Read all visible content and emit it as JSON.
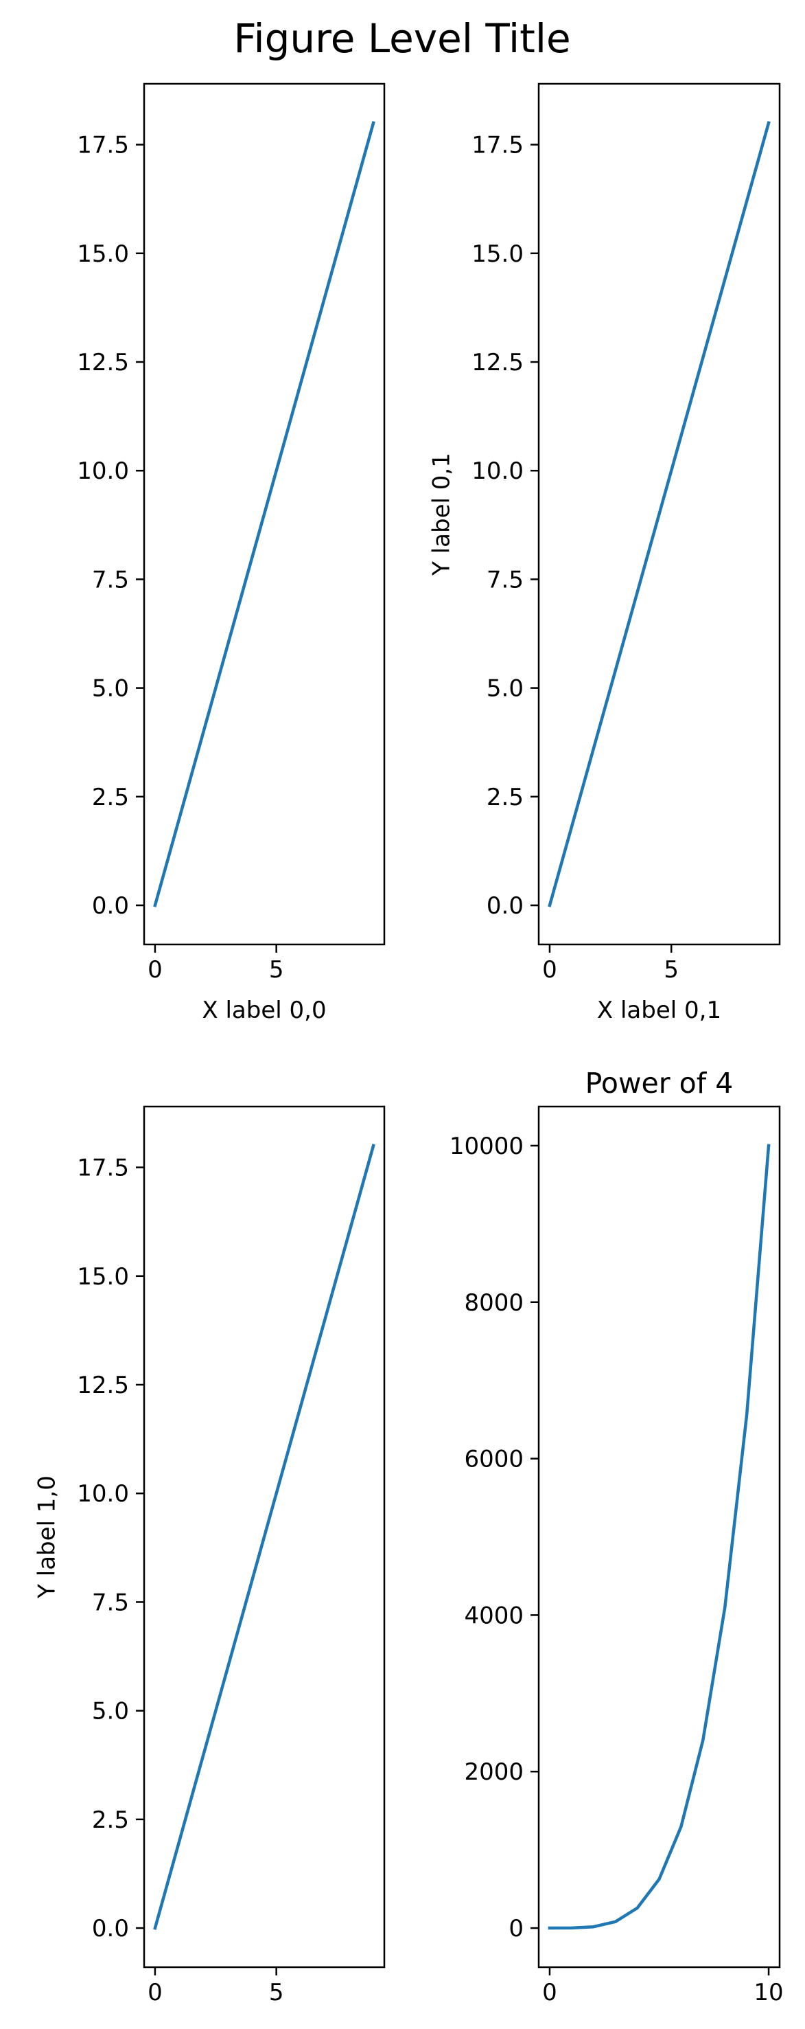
{
  "figure": {
    "title": "Figure Level Title"
  },
  "chart_data": [
    {
      "type": "line",
      "title": "",
      "xlabel": "X label 0,0",
      "ylabel": "",
      "xlim": [
        -0.45,
        9.45
      ],
      "ylim": [
        -0.9,
        18.9
      ],
      "xticks": [
        0,
        5
      ],
      "yticks": [
        0.0,
        2.5,
        5.0,
        7.5,
        10.0,
        12.5,
        15.0,
        17.5
      ],
      "ytick_labels": [
        "0.0",
        "2.5",
        "5.0",
        "7.5",
        "10.0",
        "12.5",
        "15.0",
        "17.5"
      ],
      "grid": false,
      "series": [
        {
          "color": "#1f77b4",
          "x": [
            0,
            1,
            2,
            3,
            4,
            5,
            6,
            7,
            8,
            9
          ],
          "y": [
            0,
            2,
            4,
            6,
            8,
            10,
            12,
            14,
            16,
            18
          ]
        }
      ]
    },
    {
      "type": "line",
      "title": "",
      "xlabel": "X label 0,1",
      "ylabel": "Y label 0,1",
      "xlim": [
        -0.45,
        9.45
      ],
      "ylim": [
        -0.9,
        18.9
      ],
      "xticks": [
        0,
        5
      ],
      "yticks": [
        0.0,
        2.5,
        5.0,
        7.5,
        10.0,
        12.5,
        15.0,
        17.5
      ],
      "ytick_labels": [
        "0.0",
        "2.5",
        "5.0",
        "7.5",
        "10.0",
        "12.5",
        "15.0",
        "17.5"
      ],
      "grid": false,
      "series": [
        {
          "color": "#1f77b4",
          "x": [
            0,
            1,
            2,
            3,
            4,
            5,
            6,
            7,
            8,
            9
          ],
          "y": [
            0,
            2,
            4,
            6,
            8,
            10,
            12,
            14,
            16,
            18
          ]
        }
      ]
    },
    {
      "type": "line",
      "title": "",
      "xlabel": "",
      "ylabel": "Y label 1,0",
      "xlim": [
        -0.45,
        9.45
      ],
      "ylim": [
        -0.9,
        18.9
      ],
      "xticks": [
        0,
        5
      ],
      "yticks": [
        0.0,
        2.5,
        5.0,
        7.5,
        10.0,
        12.5,
        15.0,
        17.5
      ],
      "ytick_labels": [
        "0.0",
        "2.5",
        "5.0",
        "7.5",
        "10.0",
        "12.5",
        "15.0",
        "17.5"
      ],
      "grid": false,
      "series": [
        {
          "color": "#1f77b4",
          "x": [
            0,
            1,
            2,
            3,
            4,
            5,
            6,
            7,
            8,
            9
          ],
          "y": [
            0,
            2,
            4,
            6,
            8,
            10,
            12,
            14,
            16,
            18
          ]
        }
      ]
    },
    {
      "type": "line",
      "title": "Power of 4",
      "xlabel": "",
      "ylabel": "",
      "xlim": [
        -0.5,
        10.5
      ],
      "ylim": [
        -500,
        10500
      ],
      "xticks": [
        0,
        10
      ],
      "yticks": [
        0,
        2000,
        4000,
        6000,
        8000,
        10000
      ],
      "ytick_labels": [
        "0",
        "2000",
        "4000",
        "6000",
        "8000",
        "10000"
      ],
      "grid": false,
      "series": [
        {
          "color": "#1f77b4",
          "x": [
            0,
            1,
            2,
            3,
            4,
            5,
            6,
            7,
            8,
            9,
            10
          ],
          "y": [
            0,
            1,
            16,
            81,
            256,
            625,
            1296,
            2401,
            4096,
            6561,
            10000
          ]
        }
      ]
    }
  ]
}
